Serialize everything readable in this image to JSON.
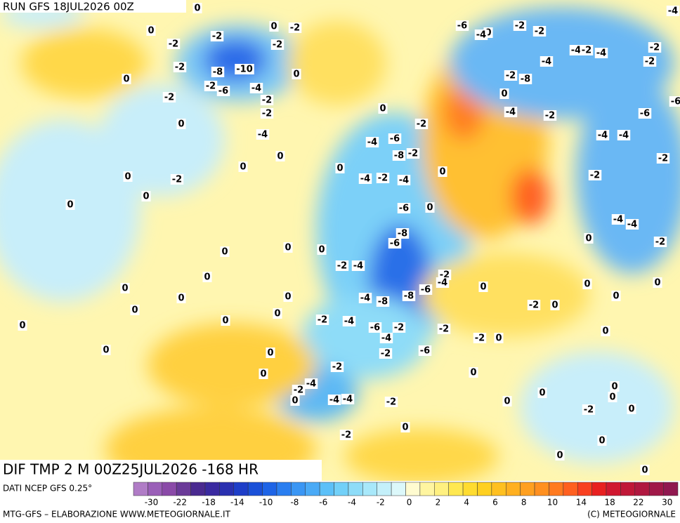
{
  "header": {
    "run": "RUN GFS 18JUL2026 00Z"
  },
  "map": {
    "title": "DIF TMP 2 M 00Z25JUL2026 -168 HR",
    "labels": [
      0,
      0,
      -2,
      0,
      -2,
      -2,
      -2,
      -2,
      -8,
      -10,
      0,
      0,
      -2,
      -6,
      -4,
      -2,
      -2,
      -2,
      0,
      -4,
      0,
      0,
      -2,
      0,
      0,
      0,
      0,
      0,
      0,
      0,
      0,
      0,
      0,
      0,
      0,
      0,
      0,
      0,
      0,
      0,
      0,
      0,
      -2,
      -4,
      -6,
      -8,
      -2,
      0,
      -4,
      -2,
      -4,
      0,
      -6,
      0,
      -8,
      -6,
      -2,
      -4,
      -2,
      -4,
      -6,
      -8,
      -8,
      -4,
      0,
      -2,
      -4,
      -6,
      -2,
      -2,
      -4,
      -2,
      -6,
      -2,
      0,
      -2,
      0,
      -2,
      -4,
      -2,
      -4,
      -4,
      -2,
      0,
      -2,
      0,
      0,
      0,
      0,
      0,
      -2,
      0,
      0,
      0,
      0,
      0,
      0,
      0,
      0,
      0,
      -2,
      -4,
      -4,
      -2,
      -2,
      -4,
      -4,
      -6,
      -6,
      -2,
      -4,
      0,
      -2,
      -8,
      -4,
      -4,
      -2,
      -4,
      -2,
      -2,
      -4,
      -2,
      -2,
      -6,
      0,
      -4
    ],
    "colorbar": {
      "colors": [
        "#b07cc6",
        "#9a5fb8",
        "#8a4aa8",
        "#6a3a98",
        "#4a2a90",
        "#3a2aa0",
        "#2a30b0",
        "#1e3ec8",
        "#1a50d8",
        "#1e64e6",
        "#2a7ef0",
        "#3a96f4",
        "#4aaaf6",
        "#5cc0f8",
        "#72d0f8",
        "#8edcf8",
        "#a8e8fa",
        "#c4f0fa",
        "#dcf8fa",
        "#fffbd0",
        "#fff5a0",
        "#fff080",
        "#ffe850",
        "#ffdc30",
        "#ffd020",
        "#ffc020",
        "#ffb020",
        "#ffa020",
        "#ff9020",
        "#ff7a20",
        "#ff6020",
        "#f84020",
        "#e82020",
        "#d01830",
        "#c01838",
        "#b01840",
        "#a01848",
        "#901850"
      ],
      "labels": [
        -30,
        -22,
        -18,
        -14,
        -10,
        -8,
        -6,
        -4,
        -2,
        0,
        2,
        4,
        6,
        8,
        10,
        14,
        18,
        22,
        30
      ]
    }
  },
  "footer": {
    "source": "DATI NCEP GFS 0.25°",
    "credit": "MTG-GFS – ELABORAZIONE WWW.METEOGIORNALE.IT",
    "copyright": "(C) METEOGIORNALE"
  }
}
